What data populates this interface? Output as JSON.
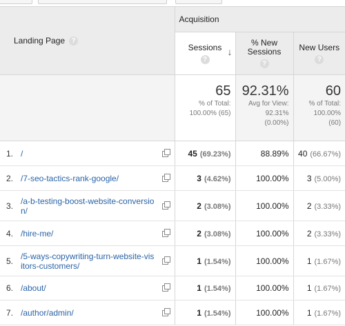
{
  "header": {
    "landing_page": "Landing Page",
    "group": "Acquisition",
    "help": "?",
    "sort_indicator": "↓",
    "columns": [
      {
        "line1": "Sessions",
        "line2": ""
      },
      {
        "line1": "% New",
        "line2": "Sessions"
      },
      {
        "line1": "New Users",
        "line2": ""
      }
    ]
  },
  "totals": [
    {
      "value": "65",
      "l1": "% of Total:",
      "l2": "100.00% (65)",
      "l3": ""
    },
    {
      "value": "92.31%",
      "l1": "Avg for View:",
      "l2": "92.31%",
      "l3": "(0.00%)"
    },
    {
      "value": "60",
      "l1": "% of Total:",
      "l2": "100.00%",
      "l3": "(60)"
    }
  ],
  "rows": [
    {
      "idx": "1.",
      "page": "/",
      "sessions": "45",
      "sessions_pct": "(69.23%)",
      "new_sessions": "88.89%",
      "new_users": "40",
      "new_users_pct": "(66.67%)"
    },
    {
      "idx": "2.",
      "page": "/7-seo-tactics-rank-google/",
      "sessions": "3",
      "sessions_pct": "(4.62%)",
      "new_sessions": "100.00%",
      "new_users": "3",
      "new_users_pct": "(5.00%)"
    },
    {
      "idx": "3.",
      "page": "/a-b-testing-boost-website-conversion/",
      "sessions": "2",
      "sessions_pct": "(3.08%)",
      "new_sessions": "100.00%",
      "new_users": "2",
      "new_users_pct": "(3.33%)"
    },
    {
      "idx": "4.",
      "page": "/hire-me/",
      "sessions": "2",
      "sessions_pct": "(3.08%)",
      "new_sessions": "100.00%",
      "new_users": "2",
      "new_users_pct": "(3.33%)"
    },
    {
      "idx": "5.",
      "page": "/5-ways-copywriting-turn-website-visitors-customers/",
      "sessions": "1",
      "sessions_pct": "(1.54%)",
      "new_sessions": "100.00%",
      "new_users": "1",
      "new_users_pct": "(1.67%)"
    },
    {
      "idx": "6.",
      "page": "/about/",
      "sessions": "1",
      "sessions_pct": "(1.54%)",
      "new_sessions": "100.00%",
      "new_users": "1",
      "new_users_pct": "(1.67%)"
    },
    {
      "idx": "7.",
      "page": "/author/admin/",
      "sessions": "1",
      "sessions_pct": "(1.54%)",
      "new_sessions": "100.00%",
      "new_users": "1",
      "new_users_pct": "(1.67%)"
    }
  ]
}
